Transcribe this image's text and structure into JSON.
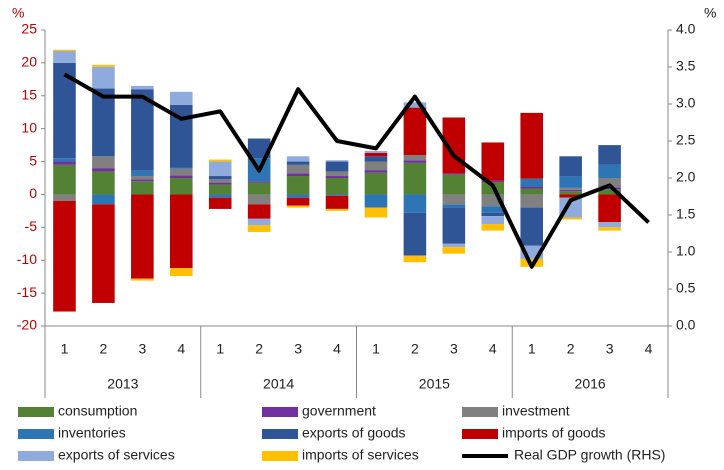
{
  "chart_data": {
    "type": "stacked_bar_line",
    "y_axis_label": "%",
    "y2_axis_label": "%",
    "categories": [
      "1",
      "2",
      "3",
      "4",
      "1",
      "2",
      "3",
      "4",
      "1",
      "2",
      "3",
      "4",
      "1",
      "2",
      "3",
      "4"
    ],
    "year_groups": [
      "2013",
      "2014",
      "2015",
      "2016"
    ],
    "ylim": [
      -20,
      25
    ],
    "yticks": [
      25,
      20,
      15,
      10,
      5,
      0,
      -5,
      -10,
      -15,
      -20
    ],
    "y2lim": [
      0,
      4
    ],
    "y2ticks": [
      {
        "value": 4,
        "label": "4.0"
      },
      3.5,
      {
        "value": 3,
        "label": "3.0"
      },
      2.5,
      {
        "value": 2,
        "label": "2.0"
      },
      1.5,
      {
        "value": 1,
        "label": "1.0"
      },
      0.5,
      {
        "value": 0,
        "label": "0.0"
      }
    ],
    "left_tick_color": "#c00000",
    "series": [
      {
        "name": "consumption",
        "color": "#548235",
        "values": [
          4.5,
          3.5,
          2,
          2.5,
          1.5,
          1.8,
          2.8,
          2.5,
          3.3,
          4.8,
          3,
          1.9,
          0.9,
          0.5,
          0.8,
          null
        ]
      },
      {
        "name": "government",
        "color": "#7030a0",
        "values": [
          0.5,
          0.5,
          0.3,
          0.4,
          0.3,
          0.2,
          0.4,
          0.3,
          0.4,
          0.4,
          0.2,
          0.2,
          0.3,
          0.2,
          0.3,
          null
        ]
      },
      {
        "name": "investment",
        "color": "#808080",
        "values": [
          -1,
          1.8,
          0.5,
          1,
          0.5,
          -1.5,
          1.3,
          0.7,
          1.3,
          0.8,
          -1.5,
          -1.8,
          -2,
          0.3,
          1.4,
          null
        ]
      },
      {
        "name": "inventories",
        "color": "#2e75b6",
        "values": [
          0.5,
          -1.5,
          0.8,
          0.2,
          -0.5,
          3.5,
          -0.5,
          -0.2,
          -2,
          -2.8,
          -0.5,
          -1,
          1.2,
          1.8,
          2,
          null
        ]
      },
      {
        "name": "exports of goods",
        "color": "#2f5597",
        "values": [
          14.5,
          10.3,
          12.4,
          9.5,
          0.5,
          3,
          0.5,
          1.5,
          0.8,
          -6.5,
          -5.5,
          -0.5,
          -5.8,
          3,
          3,
          null
        ]
      },
      {
        "name": "imports of goods",
        "color": "#c00000",
        "values": [
          -16.8,
          -15,
          -12.8,
          -11.2,
          -1.7,
          -2.2,
          -1.2,
          -2,
          0.5,
          7.2,
          8.5,
          5.8,
          10,
          -0.5,
          -4.2,
          null
        ]
      },
      {
        "name": "exports of services",
        "color": "#8faadc",
        "values": [
          1.8,
          3.3,
          0.5,
          2,
          2.2,
          -1,
          0.8,
          0.2,
          0.3,
          0.8,
          -0.5,
          -1.2,
          -2,
          -3,
          -0.8,
          null
        ]
      },
      {
        "name": "imports of services",
        "color": "#ffc000",
        "values": [
          0.2,
          0.3,
          -0.3,
          -1.2,
          0.3,
          -1,
          -0.3,
          -0.3,
          -1.5,
          -1,
          -1,
          -1,
          -1.2,
          -0.3,
          -0.5,
          null
        ]
      },
      {
        "name": "Real GDP growth (RHS)",
        "color": "#000000",
        "axis": "y2",
        "values": [
          3.4,
          3.1,
          3.1,
          2.8,
          2.9,
          2.1,
          3.2,
          2.5,
          2.4,
          3.1,
          2.3,
          1.9,
          0.8,
          1.7,
          1.9,
          1.4
        ]
      }
    ]
  }
}
